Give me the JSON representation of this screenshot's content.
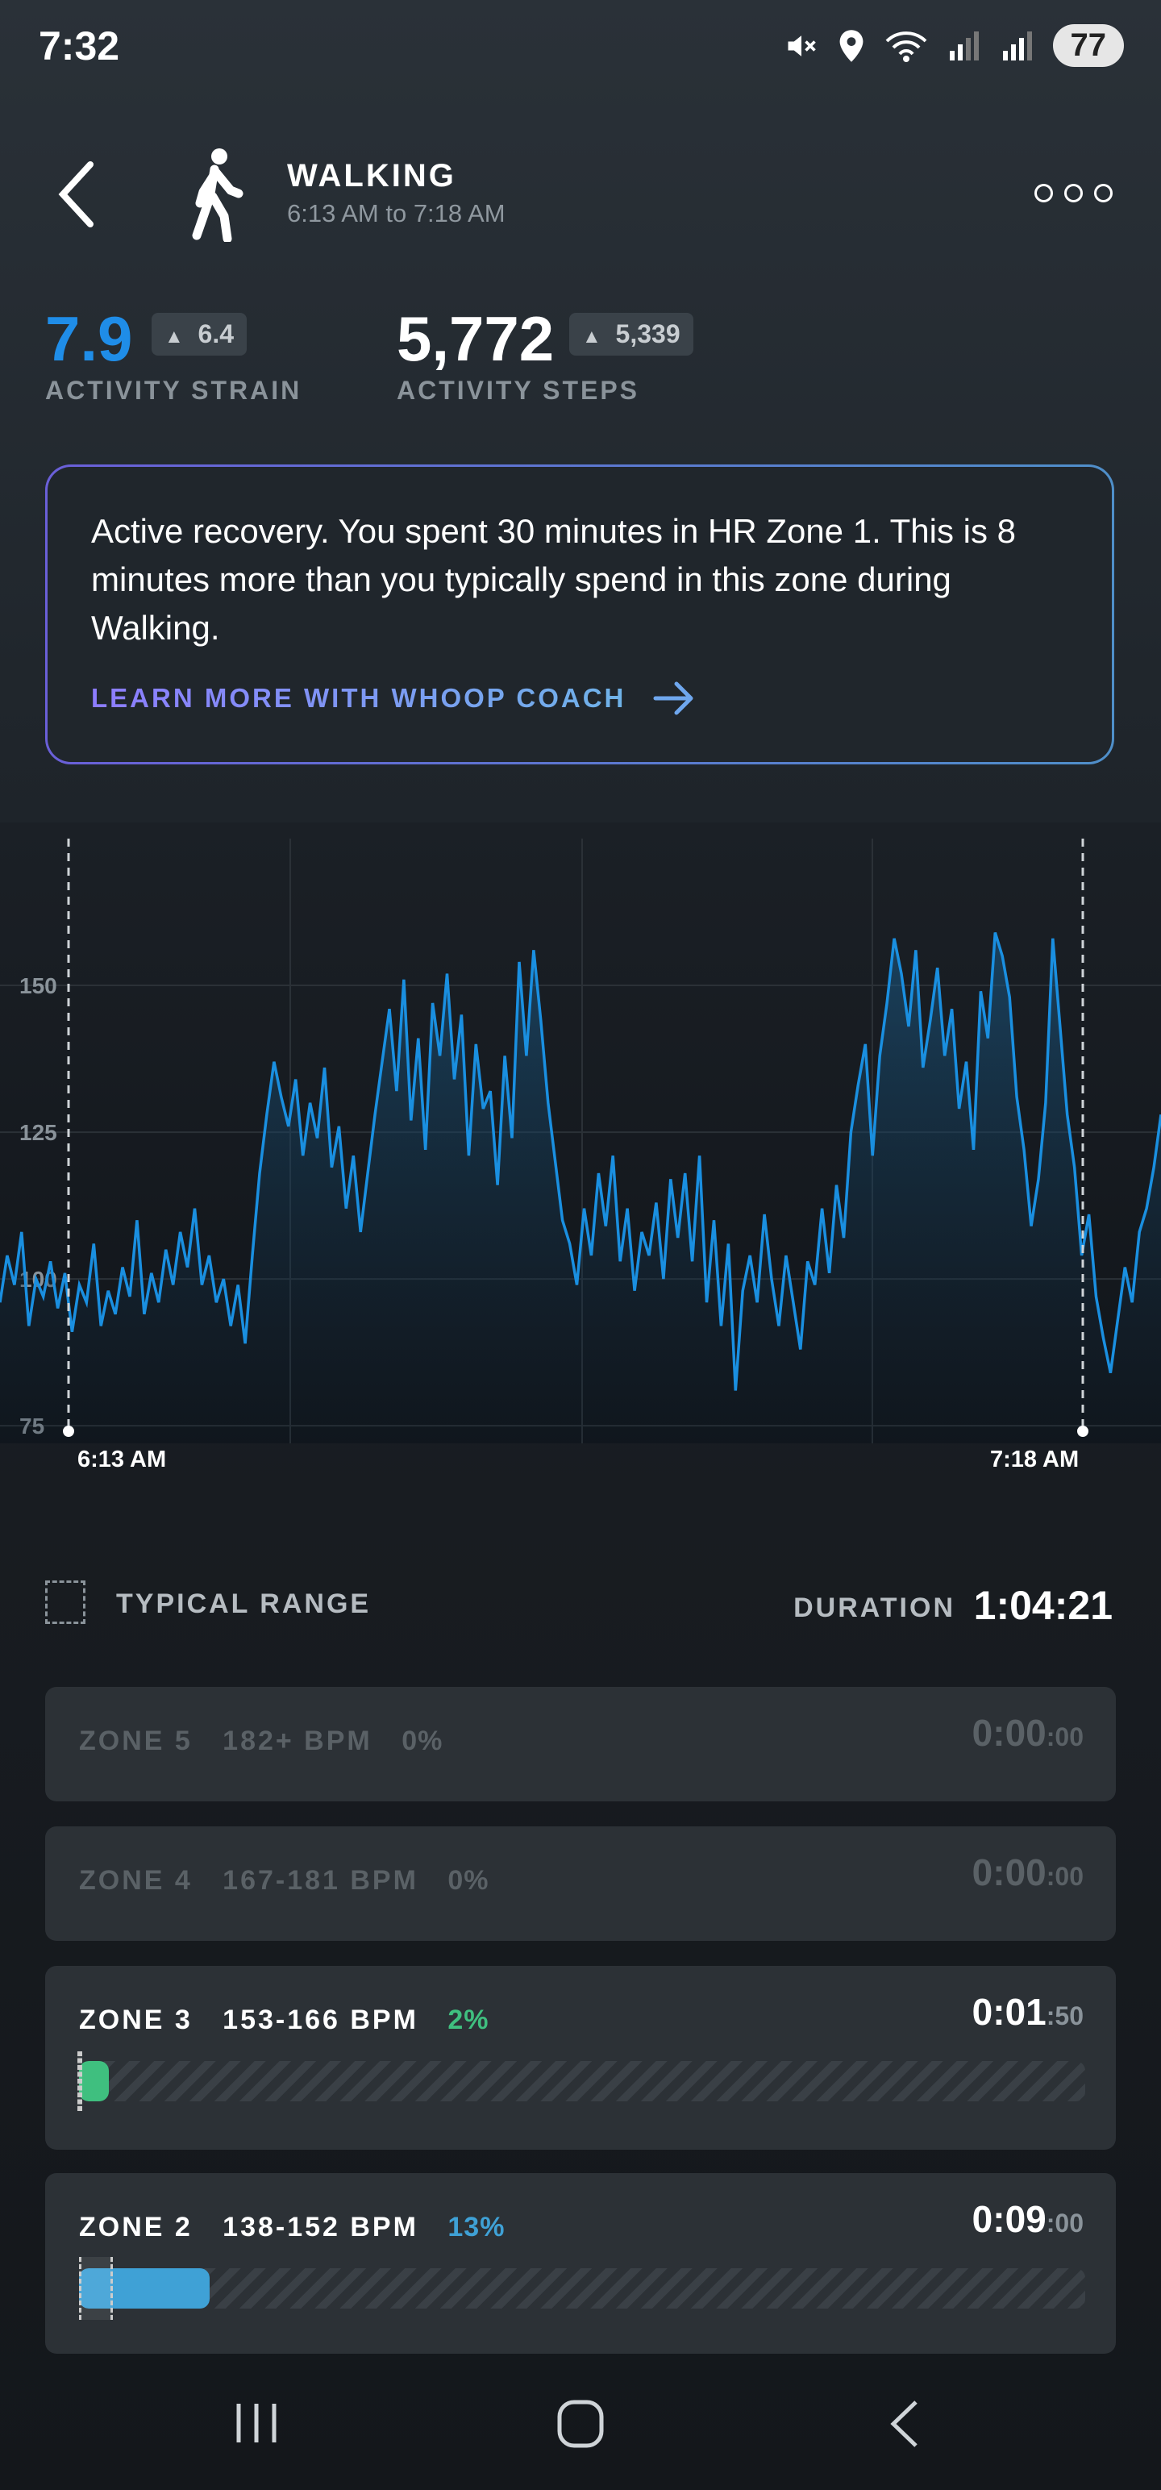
{
  "status": {
    "time": "7:32",
    "battery": "77"
  },
  "header": {
    "title": "WALKING",
    "subtitle": "6:13 AM to 7:18 AM"
  },
  "metrics": [
    {
      "value": "7.9",
      "delta": "6.4",
      "label": "ACTIVITY STRAIN",
      "color": "#1f8de8"
    },
    {
      "value": "5,772",
      "delta": "5,339",
      "label": "ACTIVITY STEPS",
      "color": "#ffffff"
    }
  ],
  "coach": {
    "text": "Active recovery. You spent 30 minutes in HR Zone 1. This is 8 minutes more than you typically spend in this zone during Walking.",
    "link": "LEARN MORE WITH WHOOP COACH"
  },
  "chart_data": {
    "type": "line",
    "title": "",
    "xlabel": "",
    "ylabel": "",
    "yticks": [
      75,
      100,
      125,
      150
    ],
    "ylim": [
      72,
      175
    ],
    "x_labels": [
      "6:13 AM",
      "7:18 AM"
    ],
    "series": [
      {
        "color": "#1a8fe0",
        "values": [
          96,
          104,
          99,
          108,
          92,
          100,
          97,
          103,
          95,
          101,
          91,
          99,
          96,
          106,
          92,
          98,
          94,
          102,
          97,
          110,
          94,
          101,
          96,
          105,
          99,
          108,
          102,
          112,
          99,
          104,
          96,
          100,
          92,
          99,
          89,
          104,
          118,
          128,
          137,
          131,
          126,
          134,
          121,
          130,
          124,
          136,
          119,
          126,
          112,
          121,
          108,
          118,
          128,
          137,
          146,
          132,
          151,
          127,
          141,
          122,
          147,
          138,
          152,
          134,
          145,
          121,
          140,
          129,
          132,
          116,
          138,
          124,
          154,
          138,
          156,
          144,
          130,
          120,
          110,
          106,
          99,
          112,
          104,
          118,
          109,
          121,
          103,
          112,
          98,
          108,
          104,
          113,
          100,
          117,
          107,
          118,
          103,
          121,
          96,
          110,
          92,
          106,
          81,
          98,
          104,
          96,
          111,
          100,
          92,
          104,
          96,
          88,
          103,
          99,
          112,
          101,
          116,
          107,
          125,
          133,
          140,
          121,
          138,
          147,
          158,
          152,
          143,
          156,
          136,
          144,
          153,
          138,
          146,
          129,
          137,
          122,
          149,
          141,
          159,
          155,
          148,
          131,
          122,
          109,
          117,
          130,
          158,
          143,
          128,
          119,
          104,
          111,
          97,
          90,
          84,
          93,
          102,
          96,
          108,
          112,
          119,
          128
        ]
      }
    ]
  },
  "legend": {
    "typical_range": "TYPICAL RANGE",
    "duration_label": "DURATION",
    "duration_value": "1:04:21"
  },
  "zones": [
    {
      "name": "ZONE 5",
      "bpm": "182+ BPM",
      "pct": "0%",
      "time_main": "0:00",
      "time_sec": ":00",
      "fill": 0,
      "color": "#5a6166"
    },
    {
      "name": "ZONE 4",
      "bpm": "167-181 BPM",
      "pct": "0%",
      "time_main": "0:00",
      "time_sec": ":00",
      "fill": 0,
      "color": "#5a6166"
    },
    {
      "name": "ZONE 3",
      "bpm": "153-166 BPM",
      "pct": "2%",
      "time_main": "0:01",
      "time_sec": ":50",
      "fill": 0.02,
      "color": "#3fbf7f"
    },
    {
      "name": "ZONE 2",
      "bpm": "138-152 BPM",
      "pct": "13%",
      "time_main": "0:09",
      "time_sec": ":00",
      "fill": 0.13,
      "color": "#3fa1d6"
    }
  ]
}
